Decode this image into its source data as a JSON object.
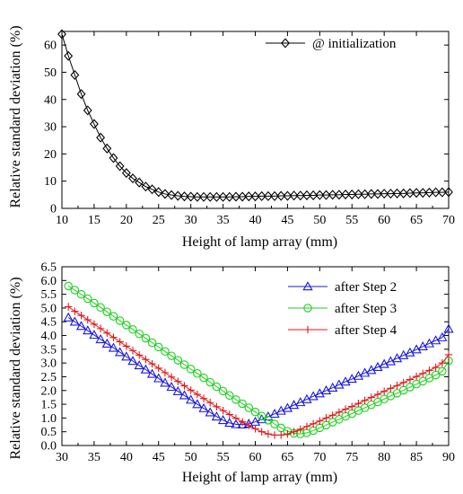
{
  "chart_data": [
    {
      "type": "line",
      "xlabel": "Height of lamp array (mm)",
      "ylabel": "Relative standard deviation (%)",
      "xlim": [
        10,
        70
      ],
      "ylim": [
        0,
        65
      ],
      "x_ticks": [
        "10",
        "15",
        "20",
        "25",
        "30",
        "35",
        "40",
        "45",
        "50",
        "55",
        "60",
        "65",
        "70"
      ],
      "y_ticks": [
        "0",
        "10",
        "20",
        "30",
        "40",
        "50",
        "60"
      ],
      "legend_position": "top-right",
      "series": [
        {
          "name": "@ initialization",
          "marker": "diamond",
          "color": "#000000",
          "x": [
            10,
            11,
            12,
            13,
            14,
            15,
            16,
            17,
            18,
            19,
            20,
            21,
            22,
            23,
            24,
            25,
            26,
            27,
            28,
            29,
            30,
            31,
            32,
            33,
            34,
            35,
            36,
            37,
            38,
            39,
            40,
            41,
            42,
            43,
            44,
            45,
            46,
            47,
            48,
            49,
            50,
            51,
            52,
            53,
            54,
            55,
            56,
            57,
            58,
            59,
            60,
            61,
            62,
            63,
            64,
            65,
            66,
            67,
            68,
            69,
            70
          ],
          "values": [
            64,
            56,
            49,
            42,
            36,
            31,
            26,
            22,
            18.5,
            15.5,
            13,
            11,
            9.5,
            8,
            7,
            6,
            5.3,
            4.9,
            4.6,
            4.4,
            4.3,
            4.2,
            4.2,
            4.2,
            4.2,
            4.2,
            4.2,
            4.3,
            4.3,
            4.4,
            4.4,
            4.5,
            4.5,
            4.5,
            4.6,
            4.6,
            4.7,
            4.7,
            4.8,
            4.8,
            4.9,
            4.9,
            5.0,
            5.0,
            5.1,
            5.1,
            5.2,
            5.2,
            5.3,
            5.3,
            5.4,
            5.4,
            5.5,
            5.5,
            5.6,
            5.7,
            5.7,
            5.8,
            5.9,
            5.9,
            6.0
          ]
        }
      ]
    },
    {
      "type": "line",
      "xlabel": "Height of lamp array (mm)",
      "ylabel": "Relative standard deviation (%)",
      "xlim": [
        30,
        90
      ],
      "ylim": [
        0,
        6.5
      ],
      "x_ticks": [
        "30",
        "35",
        "40",
        "45",
        "50",
        "55",
        "60",
        "65",
        "70",
        "75",
        "80",
        "85",
        "90"
      ],
      "y_ticks": [
        "0.0",
        "0.5",
        "1.0",
        "1.5",
        "2.0",
        "2.5",
        "3.0",
        "3.5",
        "4.0",
        "4.5",
        "5.0",
        "5.5",
        "6.0",
        "6.5"
      ],
      "legend_position": "top-right",
      "series": [
        {
          "name": "after Step 2",
          "marker": "triangle",
          "color": "#1a1adc",
          "x": [
            31,
            32,
            33,
            34,
            35,
            36,
            37,
            38,
            39,
            40,
            41,
            42,
            43,
            44,
            45,
            46,
            47,
            48,
            49,
            50,
            51,
            52,
            53,
            54,
            55,
            56,
            57,
            58,
            59,
            60,
            61,
            62,
            63,
            64,
            65,
            66,
            67,
            68,
            69,
            70,
            71,
            72,
            73,
            74,
            75,
            76,
            77,
            78,
            79,
            80,
            81,
            82,
            83,
            84,
            85,
            86,
            87,
            88,
            89,
            90
          ],
          "values": [
            4.65,
            4.5,
            4.34,
            4.18,
            4.02,
            3.86,
            3.7,
            3.55,
            3.39,
            3.23,
            3.07,
            2.91,
            2.76,
            2.6,
            2.44,
            2.28,
            2.13,
            1.97,
            1.82,
            1.66,
            1.5,
            1.35,
            1.2,
            1.05,
            0.92,
            0.82,
            0.77,
            0.76,
            0.79,
            0.86,
            0.95,
            1.05,
            1.15,
            1.26,
            1.36,
            1.47,
            1.57,
            1.68,
            1.79,
            1.89,
            2.0,
            2.1,
            2.21,
            2.32,
            2.42,
            2.53,
            2.64,
            2.74,
            2.85,
            2.96,
            3.06,
            3.17,
            3.28,
            3.38,
            3.49,
            3.6,
            3.71,
            3.82,
            3.93,
            4.24
          ]
        },
        {
          "name": "after Step 3",
          "marker": "circle",
          "color": "#1fd01f",
          "x": [
            31,
            32,
            33,
            34,
            35,
            36,
            37,
            38,
            39,
            40,
            41,
            42,
            43,
            44,
            45,
            46,
            47,
            48,
            49,
            50,
            51,
            52,
            53,
            54,
            55,
            56,
            57,
            58,
            59,
            60,
            61,
            62,
            63,
            64,
            65,
            66,
            67,
            68,
            69,
            70,
            71,
            72,
            73,
            74,
            75,
            76,
            77,
            78,
            79,
            80,
            81,
            82,
            83,
            84,
            85,
            86,
            87,
            88,
            89,
            90
          ],
          "values": [
            5.8,
            5.65,
            5.5,
            5.34,
            5.18,
            5.02,
            4.86,
            4.7,
            4.54,
            4.38,
            4.22,
            4.06,
            3.9,
            3.74,
            3.58,
            3.42,
            3.26,
            3.1,
            2.94,
            2.78,
            2.62,
            2.46,
            2.3,
            2.14,
            1.98,
            1.82,
            1.67,
            1.52,
            1.37,
            1.22,
            1.07,
            0.92,
            0.78,
            0.64,
            0.52,
            0.44,
            0.42,
            0.46,
            0.54,
            0.64,
            0.74,
            0.85,
            0.95,
            1.06,
            1.16,
            1.27,
            1.37,
            1.48,
            1.58,
            1.69,
            1.8,
            1.9,
            2.01,
            2.12,
            2.23,
            2.34,
            2.45,
            2.56,
            2.7,
            3.08
          ]
        },
        {
          "name": "after Step 4",
          "marker": "plus",
          "color": "#e01818",
          "x": [
            31,
            32,
            33,
            34,
            35,
            36,
            37,
            38,
            39,
            40,
            41,
            42,
            43,
            44,
            45,
            46,
            47,
            48,
            49,
            50,
            51,
            52,
            53,
            54,
            55,
            56,
            57,
            58,
            59,
            60,
            61,
            62,
            63,
            64,
            65,
            66,
            67,
            68,
            69,
            70,
            71,
            72,
            73,
            74,
            75,
            76,
            77,
            78,
            79,
            80,
            81,
            82,
            83,
            84,
            85,
            86,
            87,
            88,
            89,
            90
          ],
          "values": [
            5.05,
            4.88,
            4.73,
            4.57,
            4.41,
            4.25,
            4.09,
            3.93,
            3.77,
            3.61,
            3.45,
            3.29,
            3.13,
            2.97,
            2.81,
            2.65,
            2.49,
            2.33,
            2.17,
            2.01,
            1.86,
            1.71,
            1.56,
            1.41,
            1.27,
            1.13,
            0.99,
            0.86,
            0.73,
            0.61,
            0.5,
            0.42,
            0.38,
            0.38,
            0.42,
            0.5,
            0.59,
            0.69,
            0.79,
            0.89,
            1.0,
            1.1,
            1.21,
            1.32,
            1.42,
            1.53,
            1.64,
            1.75,
            1.86,
            1.97,
            2.08,
            2.18,
            2.29,
            2.4,
            2.51,
            2.62,
            2.73,
            2.84,
            3.0,
            3.3
          ]
        }
      ]
    }
  ]
}
